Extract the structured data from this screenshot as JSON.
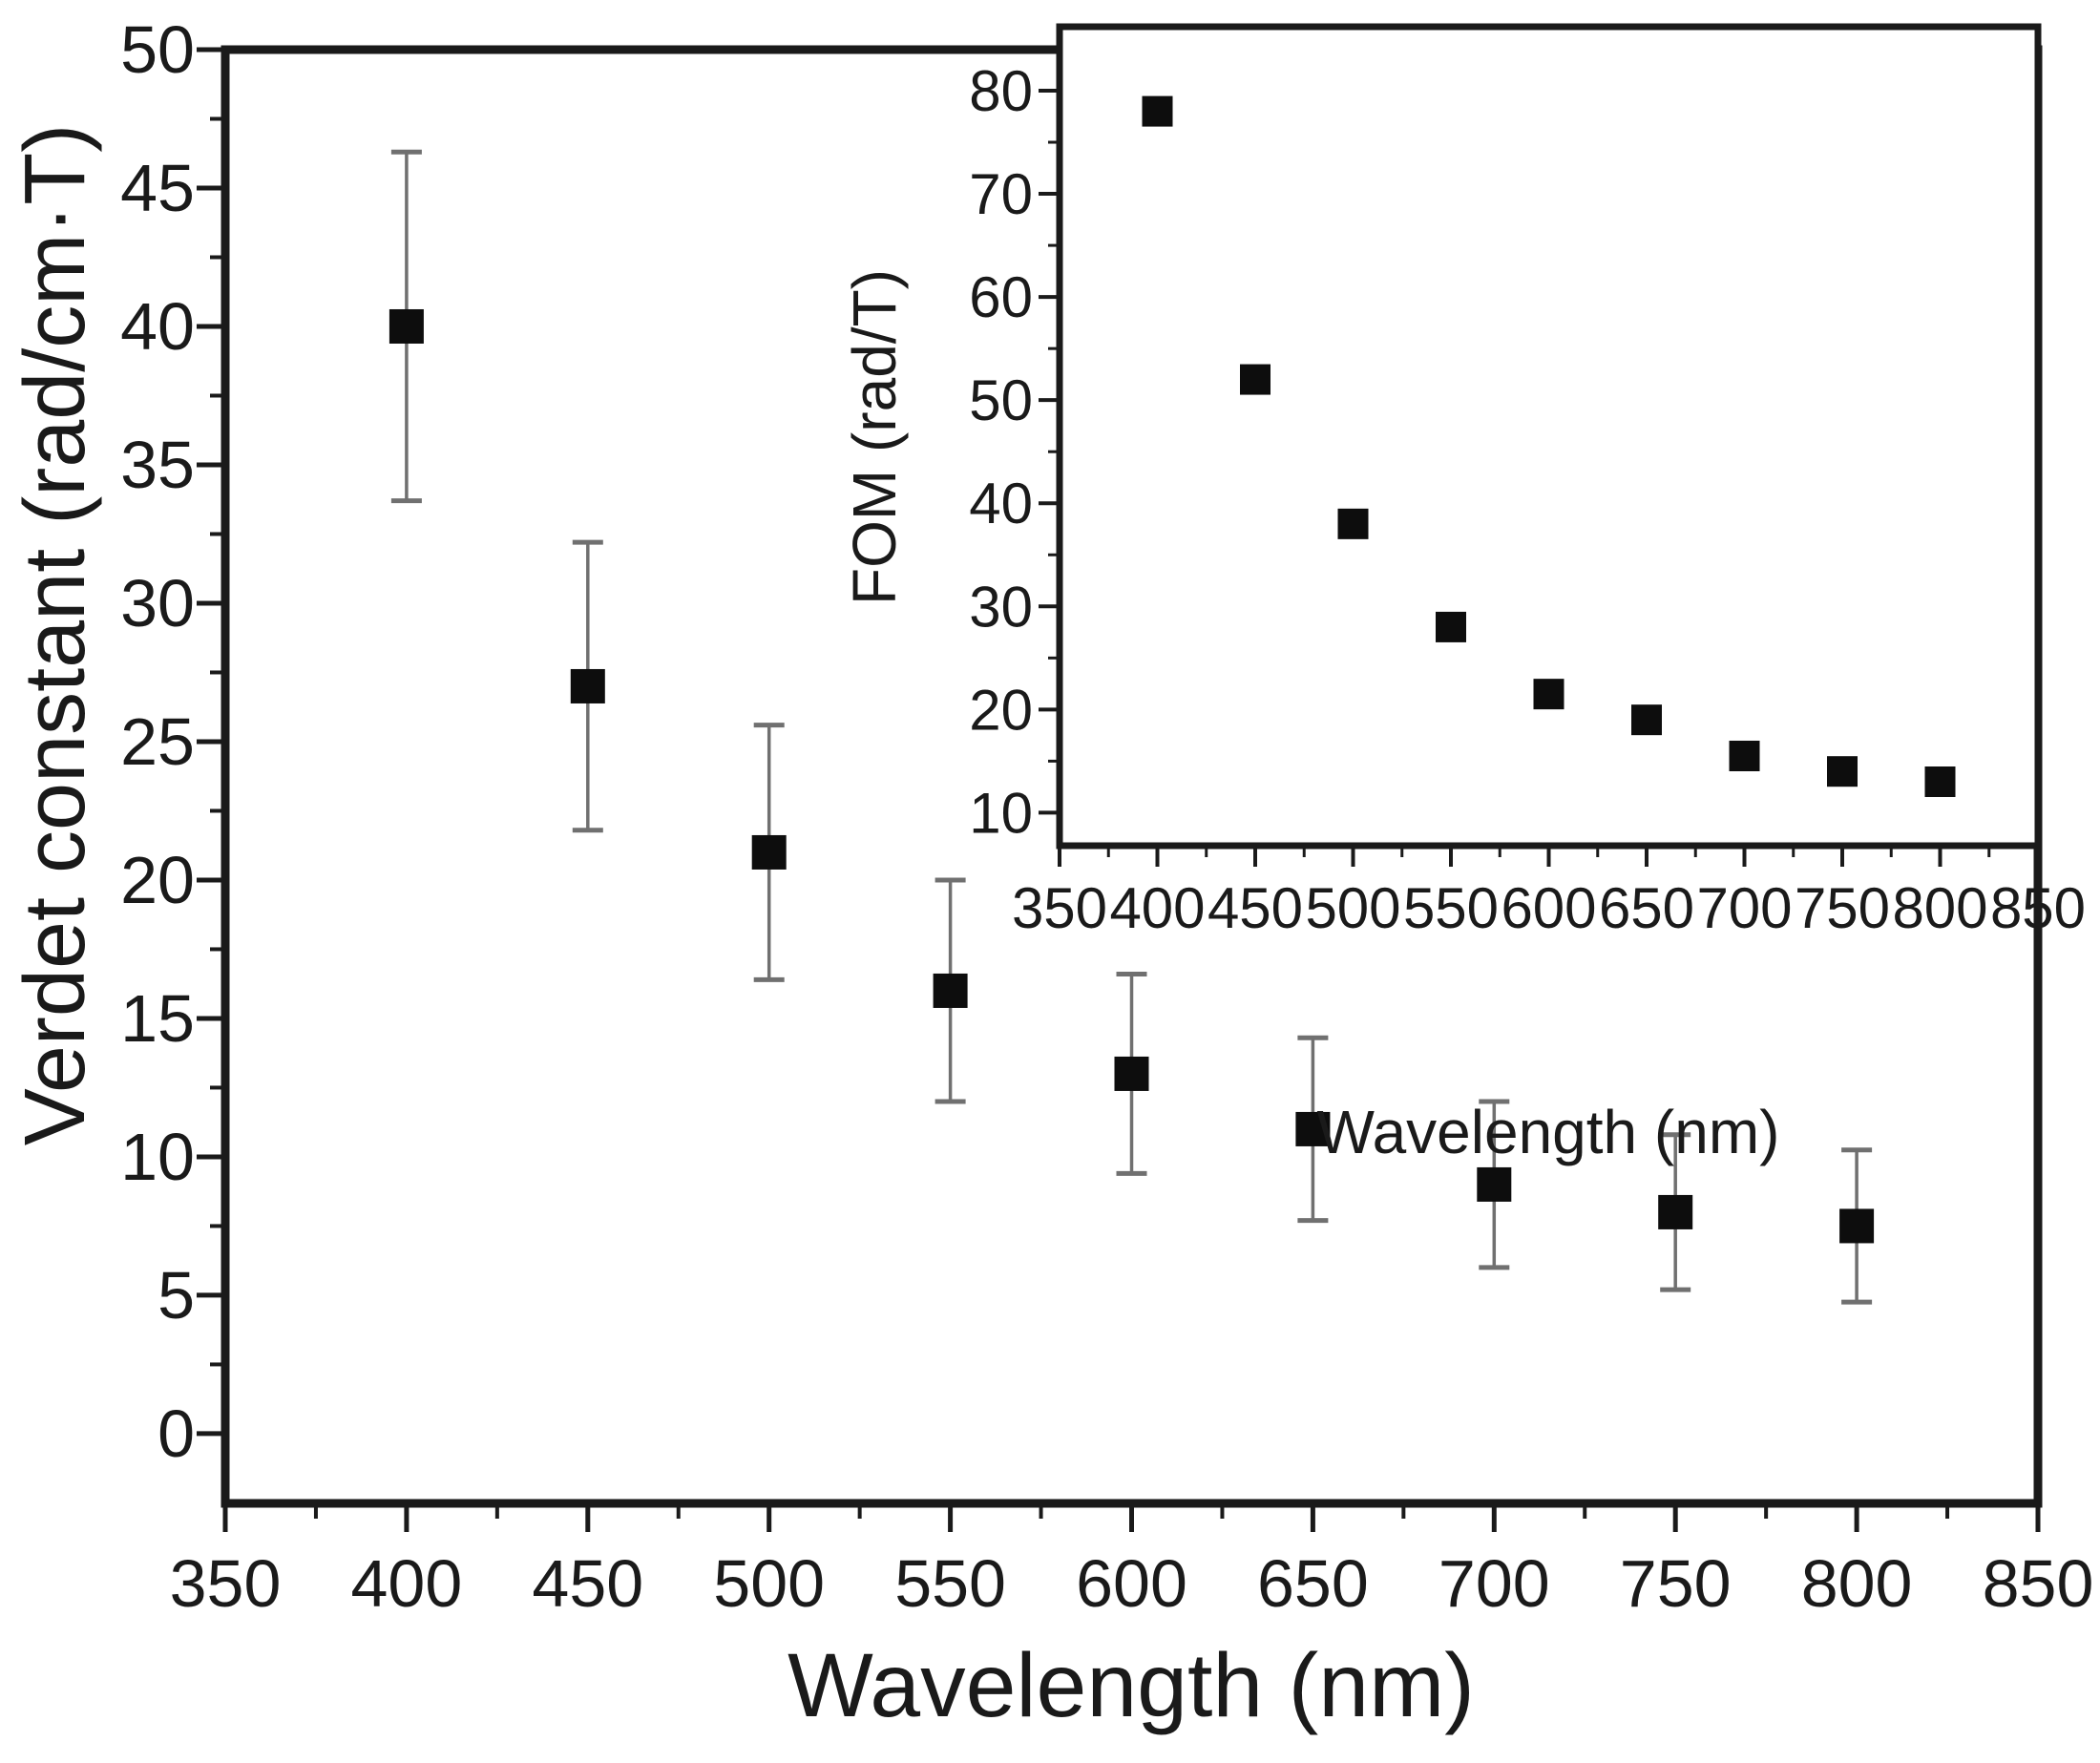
{
  "colors": {
    "background": "#ffffff",
    "axis": "#1a1a1a",
    "marker": "#0d0d0d",
    "error_bar": "#707070",
    "tick_text": "#1a1a1a"
  },
  "chart_data": [
    {
      "id": "main",
      "type": "scatter",
      "title": "",
      "xlabel": "Wavelength (nm)",
      "ylabel": "Verdet constant (rad/cm·T)",
      "xlim": [
        350,
        850
      ],
      "ylim": [
        -2.52,
        50
      ],
      "x_major_ticks": [
        350,
        400,
        450,
        500,
        550,
        600,
        650,
        700,
        750,
        800,
        850
      ],
      "y_major_ticks": [
        0,
        5,
        10,
        15,
        20,
        25,
        30,
        35,
        40,
        45,
        50
      ],
      "minor_ticks": "midpoints-between-majors",
      "grid": false,
      "legend_position": "none",
      "marker": "filled-square",
      "series": [
        {
          "name": "Verdet constant",
          "x": [
            400,
            450,
            500,
            550,
            600,
            650,
            700,
            750,
            800
          ],
          "y": [
            40,
            27,
            21,
            16,
            13,
            11,
            9,
            8,
            7.5
          ],
          "yerr": [
            6.3,
            5.2,
            4.6,
            4.0,
            3.6,
            3.3,
            3.0,
            2.8,
            2.75
          ]
        }
      ]
    },
    {
      "id": "inset",
      "type": "scatter",
      "title": "",
      "xlabel": "Wavelength (nm)",
      "ylabel": "FOM (rad/T)",
      "xlim": [
        350,
        850
      ],
      "ylim": [
        6.8,
        86.2
      ],
      "x_major_ticks": [
        350,
        400,
        450,
        500,
        550,
        600,
        650,
        700,
        750,
        800,
        850
      ],
      "y_major_ticks": [
        10,
        20,
        30,
        40,
        50,
        60,
        70,
        80
      ],
      "minor_ticks": "midpoints-between-majors",
      "grid": false,
      "legend_position": "none",
      "marker": "filled-square",
      "series": [
        {
          "name": "FOM",
          "x": [
            400,
            450,
            500,
            550,
            600,
            650,
            700,
            750,
            800
          ],
          "y": [
            78,
            52,
            38,
            28,
            21.5,
            19,
            15.5,
            14,
            13
          ]
        }
      ]
    }
  ]
}
